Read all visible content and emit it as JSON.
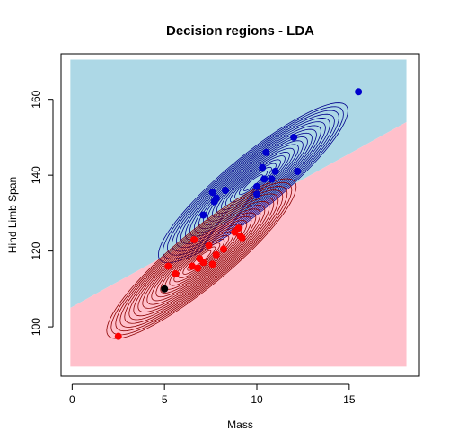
{
  "chart_data": {
    "type": "scatter",
    "title": "Decision regions - LDA",
    "xlabel": "Mass",
    "ylabel": "Hind Limb Span",
    "xlim": [
      -0.6,
      18.8
    ],
    "ylim": [
      87,
      172
    ],
    "xticks": [
      "0",
      "5",
      "10",
      "15"
    ],
    "yticks": [
      "100",
      "120",
      "140",
      "160"
    ],
    "grid": false,
    "legend": "none",
    "colors": {
      "region_upper": "#add8e6",
      "region_lower": "#ffc0cb",
      "class_upper": "#0000cd",
      "class_lower": "#ff0000",
      "contour_upper": "#00008b",
      "contour_lower": "#8b0000",
      "highlight_point": "#000000"
    },
    "decision_boundary": {
      "points": [
        [
          0,
          105
        ],
        [
          18,
          154
        ]
      ]
    },
    "grid_extent": {
      "x": [
        0,
        18
      ],
      "y": [
        90,
        170
      ]
    },
    "series": [
      {
        "class": "upper",
        "points": [
          [
            15.5,
            162
          ],
          [
            12,
            150
          ],
          [
            12.2,
            141
          ],
          [
            10.5,
            146
          ],
          [
            11,
            141
          ],
          [
            10.3,
            142
          ],
          [
            10.4,
            139
          ],
          [
            10.8,
            139
          ],
          [
            10,
            137
          ],
          [
            10,
            135
          ],
          [
            8.3,
            136
          ],
          [
            7.6,
            135.5
          ],
          [
            7.8,
            134
          ],
          [
            7.7,
            133
          ],
          [
            7.1,
            129.5
          ]
        ],
        "contour": {
          "center": [
            9.8,
            138
          ],
          "sd_x": 1.8,
          "sd_y": 7.4,
          "corr": 0.9
        }
      },
      {
        "class": "lower",
        "points": [
          [
            2.5,
            97.5
          ],
          [
            5.2,
            116
          ],
          [
            5.6,
            114
          ],
          [
            6.6,
            123
          ],
          [
            6.8,
            115.5
          ],
          [
            6.9,
            118
          ],
          [
            7.1,
            117
          ],
          [
            7.6,
            116.5
          ],
          [
            7.8,
            119
          ],
          [
            8.2,
            120.5
          ],
          [
            9,
            126
          ],
          [
            9.1,
            124
          ],
          [
            9.2,
            123.5
          ],
          [
            8.8,
            125
          ],
          [
            7.4,
            121.5
          ],
          [
            6.5,
            116
          ]
        ],
        "contour": {
          "center": [
            7.0,
            118
          ],
          "sd_x": 1.8,
          "sd_y": 7.4,
          "corr": 0.9
        }
      },
      {
        "class": "highlight",
        "points": [
          [
            5,
            110
          ]
        ]
      }
    ]
  }
}
